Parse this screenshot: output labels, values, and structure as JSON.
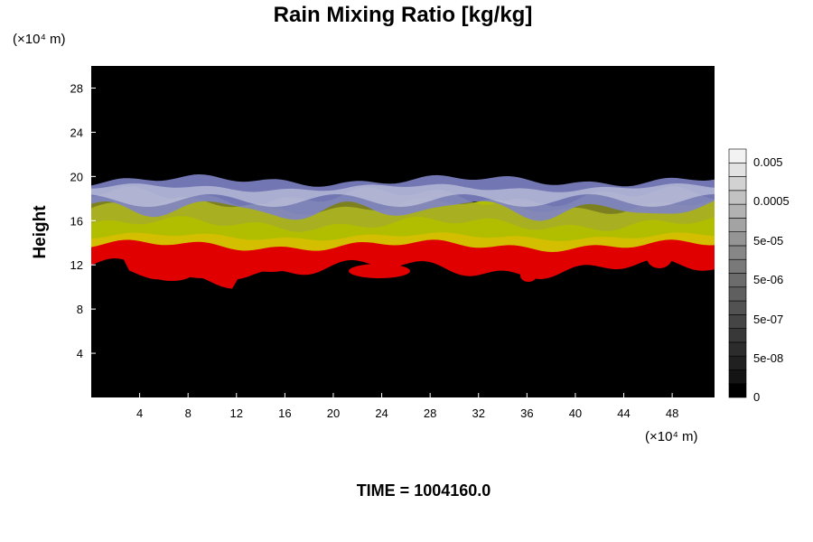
{
  "chart_data": {
    "type": "heatmap",
    "title": "Rain Mixing Ratio [kg/kg]",
    "ylabel": "Height",
    "y_unit": "(×10⁴ m)",
    "x_unit": "(×10⁴ m)",
    "xlim": [
      0,
      51.5
    ],
    "ylim": [
      0,
      30
    ],
    "x_ticks": [
      4,
      8,
      12,
      16,
      20,
      24,
      28,
      32,
      36,
      40,
      44,
      48
    ],
    "y_ticks": [
      4,
      8,
      12,
      16,
      20,
      24,
      28
    ],
    "colorbar": {
      "labels": [
        "0.005",
        "0.0005",
        "5e-05",
        "5e-06",
        "5e-07",
        "5e-08",
        "0"
      ],
      "band_colors": [
        "#000000",
        "#141414",
        "#202020",
        "#2c2c2c",
        "#383838",
        "#454545",
        "#525252",
        "#5f5f5f",
        "#6c6c6c",
        "#797979",
        "#878787",
        "#959595",
        "#a3a3a3",
        "#b2b2b2",
        "#c2c2c2",
        "#d2d2d2",
        "#e2e2e2",
        "#f2f2f2"
      ]
    },
    "layer_colors": {
      "background": "#000000",
      "top": "#7e84c8",
      "upper_middle": "#a6ab2c",
      "lower_middle": "#d0df00",
      "bottom": "#e00000"
    },
    "footer": "TIME = 1004160.0"
  }
}
